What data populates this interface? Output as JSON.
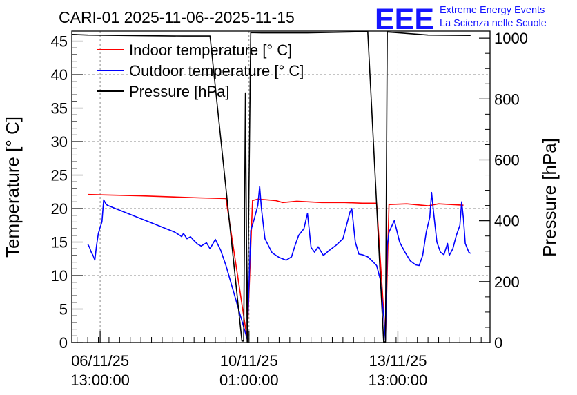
{
  "header": {
    "title": "CARI-01 2025-11-06--2025-11-15",
    "logo_text": "EEE",
    "logo_line1": "Extreme Energy Events",
    "logo_line2": "La Scienza nelle Scuole"
  },
  "colors": {
    "indoor": "#ff0000",
    "outdoor": "#0000ff",
    "pressure": "#000000",
    "logo": "#1515ff",
    "grid": "#8a8a8a"
  },
  "chart_data": {
    "type": "line",
    "title": "CARI-01 2025-11-06--2025-11-15",
    "ylabel": "Temperature [° C]",
    "y2label": "Pressure [hPa]",
    "ylim": [
      0,
      46.5
    ],
    "y2lim": [
      0,
      1023
    ],
    "yticks": [
      "0",
      "5",
      "10",
      "15",
      "20",
      "25",
      "30",
      "35",
      "40",
      "45"
    ],
    "y2ticks": [
      "0",
      "200",
      "400",
      "600",
      "800",
      "1000"
    ],
    "xlim": [
      "2025-11-05 21:00",
      "2025-11-15 17:00"
    ],
    "xticks": [
      {
        "x": "2025-11-06 13:00",
        "line1": "06/11/25",
        "line2": "13:00:00"
      },
      {
        "x": "2025-11-10 01:00",
        "line1": "10/11/25",
        "line2": "01:00:00"
      },
      {
        "x": "2025-11-13 13:00",
        "line1": "13/11/25",
        "line2": "13:00:00"
      }
    ],
    "grid": true,
    "legend_position": "top-left",
    "series": [
      {
        "name": "Indoor temperature [° C]",
        "axis": "left",
        "color": "#ff0000",
        "points": [
          [
            "2025-11-06 06:00",
            22.1
          ],
          [
            "2025-11-07 12:00",
            21.9
          ],
          [
            "2025-11-08 21:00",
            21.6
          ],
          [
            "2025-11-09 12:00",
            21.5
          ],
          [
            "2025-11-10 00:00",
            0.5
          ],
          [
            "2025-11-10 03:00",
            21.2
          ],
          [
            "2025-11-10 06:00",
            21.4
          ],
          [
            "2025-11-10 16:00",
            21.2
          ],
          [
            "2025-11-10 20:00",
            20.9
          ],
          [
            "2025-11-11 04:00",
            21.1
          ],
          [
            "2025-11-11 18:00",
            20.9
          ],
          [
            "2025-11-12 07:00",
            20.9
          ],
          [
            "2025-11-12 17:00",
            20.8
          ],
          [
            "2025-11-13 01:00",
            20.8
          ],
          [
            "2025-11-13 06:00",
            0.5
          ],
          [
            "2025-11-13 08:00",
            20.6
          ],
          [
            "2025-11-13 18:00",
            20.7
          ],
          [
            "2025-11-14 06:00",
            20.4
          ],
          [
            "2025-11-14 12:00",
            20.7
          ],
          [
            "2025-11-15 02:00",
            20.5
          ]
        ]
      },
      {
        "name": "Outdoor temperature [° C]",
        "axis": "left",
        "color": "#0000ff",
        "points": [
          [
            "2025-11-06 06:00",
            14.7
          ],
          [
            "2025-11-06 07:00",
            14.2
          ],
          [
            "2025-11-06 08:00",
            13.5
          ],
          [
            "2025-11-06 09:00",
            13.0
          ],
          [
            "2025-11-06 10:00",
            12.3
          ],
          [
            "2025-11-06 11:00",
            14.5
          ],
          [
            "2025-11-06 12:00",
            16.3
          ],
          [
            "2025-11-06 13:00",
            17.2
          ],
          [
            "2025-11-06 14:00",
            18.0
          ],
          [
            "2025-11-06 15:00",
            21.3
          ],
          [
            "2025-11-06 16:00",
            20.8
          ],
          [
            "2025-11-06 17:00",
            20.5
          ],
          [
            "2025-11-08 07:00",
            16.5
          ],
          [
            "2025-11-08 10:00",
            16.0
          ],
          [
            "2025-11-08 11:00",
            15.8
          ],
          [
            "2025-11-08 12:00",
            16.3
          ],
          [
            "2025-11-08 14:00",
            15.5
          ],
          [
            "2025-11-08 16:00",
            15.8
          ],
          [
            "2025-11-08 18:00",
            15.2
          ],
          [
            "2025-11-08 20:00",
            14.7
          ],
          [
            "2025-11-08 22:00",
            14.4
          ],
          [
            "2025-11-09 01:00",
            14.9
          ],
          [
            "2025-11-09 03:00",
            14.0
          ],
          [
            "2025-11-09 06:00",
            15.4
          ],
          [
            "2025-11-09 09:00",
            13.8
          ],
          [
            "2025-11-09 12:00",
            11.5
          ],
          [
            "2025-11-10 00:00",
            0.5
          ],
          [
            "2025-11-10 02:00",
            16.7
          ],
          [
            "2025-11-10 04:00",
            18.5
          ],
          [
            "2025-11-10 06:00",
            20.5
          ],
          [
            "2025-11-10 07:00",
            23.3
          ],
          [
            "2025-11-10 08:00",
            20.0
          ],
          [
            "2025-11-10 10:00",
            15.5
          ],
          [
            "2025-11-10 14:00",
            13.4
          ],
          [
            "2025-11-10 18:00",
            12.7
          ],
          [
            "2025-11-10 22:00",
            12.3
          ],
          [
            "2025-11-11 01:00",
            12.8
          ],
          [
            "2025-11-11 03:00",
            14.5
          ],
          [
            "2025-11-11 05:00",
            16.0
          ],
          [
            "2025-11-11 08:00",
            17.0
          ],
          [
            "2025-11-11 10:00",
            19.3
          ],
          [
            "2025-11-11 12:00",
            14.2
          ],
          [
            "2025-11-11 14:00",
            13.5
          ],
          [
            "2025-11-11 16:00",
            14.3
          ],
          [
            "2025-11-11 19:00",
            13.0
          ],
          [
            "2025-11-11 22:00",
            13.7
          ],
          [
            "2025-11-12 02:00",
            14.5
          ],
          [
            "2025-11-12 06:00",
            15.5
          ],
          [
            "2025-11-12 08:00",
            17.5
          ],
          [
            "2025-11-12 10:00",
            19.5
          ],
          [
            "2025-11-12 11:00",
            20.0
          ],
          [
            "2025-11-12 13:00",
            15.0
          ],
          [
            "2025-11-12 15:00",
            13.2
          ],
          [
            "2025-11-12 17:00",
            13.1
          ],
          [
            "2025-11-12 20:00",
            12.8
          ],
          [
            "2025-11-12 22:00",
            12.3
          ],
          [
            "2025-11-13 01:00",
            11.5
          ],
          [
            "2025-11-13 03:00",
            9.5
          ],
          [
            "2025-11-13 05:00",
            4.0
          ],
          [
            "2025-11-13 06:00",
            0.3
          ],
          [
            "2025-11-13 07:00",
            14.5
          ],
          [
            "2025-11-13 08:00",
            16.5
          ],
          [
            "2025-11-13 11:00",
            18.2
          ],
          [
            "2025-11-13 14:00",
            15.0
          ],
          [
            "2025-11-13 17:00",
            13.5
          ],
          [
            "2025-11-13 20:00",
            12.2
          ],
          [
            "2025-11-13 23:00",
            11.6
          ],
          [
            "2025-11-14 01:00",
            11.5
          ],
          [
            "2025-11-14 03:00",
            13.0
          ],
          [
            "2025-11-14 05:00",
            16.5
          ],
          [
            "2025-11-14 07:00",
            18.7
          ],
          [
            "2025-11-14 08:00",
            22.4
          ],
          [
            "2025-11-14 09:00",
            19.8
          ],
          [
            "2025-11-14 11:00",
            15.0
          ],
          [
            "2025-11-14 13:00",
            13.5
          ],
          [
            "2025-11-14 15:00",
            13.1
          ],
          [
            "2025-11-14 17:00",
            14.8
          ],
          [
            "2025-11-14 18:00",
            13.0
          ],
          [
            "2025-11-14 20:00",
            14.0
          ],
          [
            "2025-11-14 22:00",
            16.0
          ],
          [
            "2025-11-15 00:00",
            17.5
          ],
          [
            "2025-11-15 01:00",
            21.0
          ],
          [
            "2025-11-15 02:00",
            18.5
          ],
          [
            "2025-11-15 03:00",
            14.8
          ],
          [
            "2025-11-15 05:00",
            13.5
          ],
          [
            "2025-11-15 06:00",
            13.3
          ]
        ]
      },
      {
        "name": "Pressure [hPa]",
        "axis": "right",
        "color": "#000000",
        "points": [
          [
            "2025-11-05 21:00",
            1012
          ],
          [
            "2025-11-06 06:00",
            1010
          ],
          [
            "2025-11-07 12:00",
            1008
          ],
          [
            "2025-11-08 12:00",
            1007
          ],
          [
            "2025-11-09 03:00",
            1007
          ],
          [
            "2025-11-09 21:00",
            5
          ],
          [
            "2025-11-09 22:00",
            5
          ],
          [
            "2025-11-09 23:00",
            820
          ],
          [
            "2025-11-10 00:00",
            3
          ],
          [
            "2025-11-10 02:00",
            1018
          ],
          [
            "2025-11-10 08:00",
            1017
          ],
          [
            "2025-11-11 10:00",
            1017
          ],
          [
            "2025-11-12 18:00",
            1021
          ],
          [
            "2025-11-12 20:00",
            1022
          ],
          [
            "2025-11-13 05:00",
            2
          ],
          [
            "2025-11-13 06:00",
            2
          ],
          [
            "2025-11-13 07:00",
            1020
          ],
          [
            "2025-11-13 12:00",
            1018
          ],
          [
            "2025-11-14 06:00",
            1010
          ],
          [
            "2025-11-15 06:00",
            1009
          ]
        ]
      }
    ]
  }
}
